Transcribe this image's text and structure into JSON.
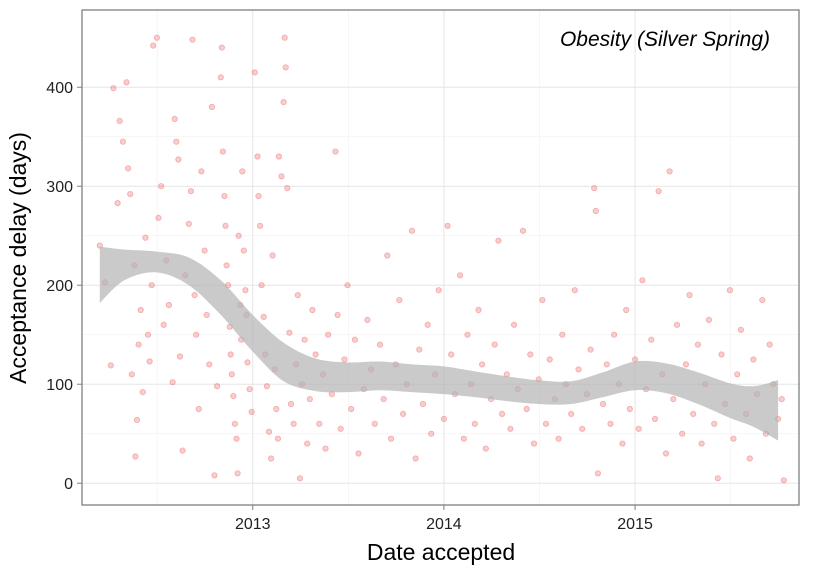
{
  "chart_data": {
    "type": "scatter",
    "title": "Obesity (Silver Spring)",
    "xlabel": "Date accepted",
    "ylabel": "Acceptance delay (days)",
    "x_ticks": [
      "2013",
      "2014",
      "2015"
    ],
    "y_ticks": [
      "0",
      "100",
      "200",
      "300",
      "400"
    ],
    "xlim": [
      "2012-02-10",
      "2015-11-10"
    ],
    "ylim": [
      -22,
      478
    ],
    "grid": true,
    "point_color": "#e8393c",
    "point_alpha": 0.25,
    "ribbon_color": "#b3b3b3",
    "smooth": {
      "x": [
        "2012-03-15",
        "2012-05-01",
        "2012-07-01",
        "2012-09-01",
        "2012-11-01",
        "2013-01-01",
        "2013-03-01",
        "2013-05-01",
        "2013-07-01",
        "2013-09-01",
        "2013-11-01",
        "2014-01-01",
        "2014-03-01",
        "2014-05-01",
        "2014-07-01",
        "2014-09-01",
        "2014-11-01",
        "2015-01-01",
        "2015-03-01",
        "2015-05-01",
        "2015-07-01",
        "2015-08-15",
        "2015-10-01"
      ],
      "lower": [
        182,
        205,
        213,
        200,
        170,
        133,
        103,
        93,
        92,
        94,
        92,
        90,
        87,
        83,
        80,
        80,
        87,
        94,
        91,
        80,
        66,
        57,
        43
      ],
      "upper": [
        239,
        236,
        234,
        228,
        205,
        170,
        142,
        126,
        122,
        123,
        120,
        118,
        113,
        108,
        104,
        103,
        112,
        123,
        121,
        112,
        101,
        98,
        104
      ]
    },
    "points": [
      {
        "date": "2012-03-15",
        "y": 240
      },
      {
        "date": "2012-03-25",
        "y": 203
      },
      {
        "date": "2012-04-05",
        "y": 119
      },
      {
        "date": "2012-04-10",
        "y": 399
      },
      {
        "date": "2012-04-18",
        "y": 283
      },
      {
        "date": "2012-04-22",
        "y": 366
      },
      {
        "date": "2012-04-28",
        "y": 345
      },
      {
        "date": "2012-05-05",
        "y": 405
      },
      {
        "date": "2012-05-08",
        "y": 318
      },
      {
        "date": "2012-05-12",
        "y": 292
      },
      {
        "date": "2012-05-15",
        "y": 110
      },
      {
        "date": "2012-05-20",
        "y": 220
      },
      {
        "date": "2012-05-22",
        "y": 27
      },
      {
        "date": "2012-05-25",
        "y": 64
      },
      {
        "date": "2012-05-28",
        "y": 140
      },
      {
        "date": "2012-06-01",
        "y": 175
      },
      {
        "date": "2012-06-05",
        "y": 92
      },
      {
        "date": "2012-06-10",
        "y": 248
      },
      {
        "date": "2012-06-15",
        "y": 150
      },
      {
        "date": "2012-06-18",
        "y": 123
      },
      {
        "date": "2012-06-22",
        "y": 200
      },
      {
        "date": "2012-06-25",
        "y": 442
      },
      {
        "date": "2012-07-02",
        "y": 450
      },
      {
        "date": "2012-07-05",
        "y": 268
      },
      {
        "date": "2012-07-10",
        "y": 300
      },
      {
        "date": "2012-07-15",
        "y": 160
      },
      {
        "date": "2012-07-20",
        "y": 225
      },
      {
        "date": "2012-07-25",
        "y": 180
      },
      {
        "date": "2012-08-01",
        "y": 102
      },
      {
        "date": "2012-08-05",
        "y": 368
      },
      {
        "date": "2012-08-08",
        "y": 345
      },
      {
        "date": "2012-08-12",
        "y": 327
      },
      {
        "date": "2012-08-15",
        "y": 128
      },
      {
        "date": "2012-08-20",
        "y": 33
      },
      {
        "date": "2012-08-25",
        "y": 210
      },
      {
        "date": "2012-09-01",
        "y": 262
      },
      {
        "date": "2012-09-05",
        "y": 295
      },
      {
        "date": "2012-09-08",
        "y": 448
      },
      {
        "date": "2012-09-12",
        "y": 190
      },
      {
        "date": "2012-09-15",
        "y": 150
      },
      {
        "date": "2012-09-20",
        "y": 75
      },
      {
        "date": "2012-09-25",
        "y": 315
      },
      {
        "date": "2012-10-01",
        "y": 235
      },
      {
        "date": "2012-10-05",
        "y": 170
      },
      {
        "date": "2012-10-10",
        "y": 120
      },
      {
        "date": "2012-10-15",
        "y": 380
      },
      {
        "date": "2012-10-20",
        "y": 8
      },
      {
        "date": "2012-10-25",
        "y": 98
      },
      {
        "date": "2012-11-01",
        "y": 410
      },
      {
        "date": "2012-11-03",
        "y": 440
      },
      {
        "date": "2012-11-05",
        "y": 335
      },
      {
        "date": "2012-11-08",
        "y": 290
      },
      {
        "date": "2012-11-10",
        "y": 260
      },
      {
        "date": "2012-11-12",
        "y": 220
      },
      {
        "date": "2012-11-15",
        "y": 200
      },
      {
        "date": "2012-11-18",
        "y": 158
      },
      {
        "date": "2012-11-20",
        "y": 130
      },
      {
        "date": "2012-11-22",
        "y": 110
      },
      {
        "date": "2012-11-25",
        "y": 88
      },
      {
        "date": "2012-11-28",
        "y": 60
      },
      {
        "date": "2012-12-01",
        "y": 45
      },
      {
        "date": "2012-12-03",
        "y": 10
      },
      {
        "date": "2012-12-05",
        "y": 250
      },
      {
        "date": "2012-12-08",
        "y": 180
      },
      {
        "date": "2012-12-10",
        "y": 145
      },
      {
        "date": "2012-12-12",
        "y": 315
      },
      {
        "date": "2012-12-15",
        "y": 235
      },
      {
        "date": "2012-12-18",
        "y": 195
      },
      {
        "date": "2012-12-20",
        "y": 170
      },
      {
        "date": "2012-12-22",
        "y": 122
      },
      {
        "date": "2012-12-26",
        "y": 95
      },
      {
        "date": "2012-12-30",
        "y": 72
      },
      {
        "date": "2013-01-05",
        "y": 415
      },
      {
        "date": "2013-01-10",
        "y": 330
      },
      {
        "date": "2013-01-12",
        "y": 290
      },
      {
        "date": "2013-01-15",
        "y": 260
      },
      {
        "date": "2013-01-18",
        "y": 200
      },
      {
        "date": "2013-01-22",
        "y": 168
      },
      {
        "date": "2013-01-25",
        "y": 130
      },
      {
        "date": "2013-01-28",
        "y": 98
      },
      {
        "date": "2013-02-01",
        "y": 52
      },
      {
        "date": "2013-02-05",
        "y": 25
      },
      {
        "date": "2013-02-08",
        "y": 230
      },
      {
        "date": "2013-02-12",
        "y": 115
      },
      {
        "date": "2013-02-15",
        "y": 75
      },
      {
        "date": "2013-02-18",
        "y": 45
      },
      {
        "date": "2013-02-20",
        "y": 330
      },
      {
        "date": "2013-02-25",
        "y": 310
      },
      {
        "date": "2013-03-01",
        "y": 385
      },
      {
        "date": "2013-03-03",
        "y": 450
      },
      {
        "date": "2013-03-05",
        "y": 420
      },
      {
        "date": "2013-03-08",
        "y": 298
      },
      {
        "date": "2013-03-12",
        "y": 152
      },
      {
        "date": "2013-03-15",
        "y": 80
      },
      {
        "date": "2013-03-20",
        "y": 60
      },
      {
        "date": "2013-03-25",
        "y": 120
      },
      {
        "date": "2013-03-28",
        "y": 190
      },
      {
        "date": "2013-04-01",
        "y": 5
      },
      {
        "date": "2013-04-05",
        "y": 100
      },
      {
        "date": "2013-04-10",
        "y": 145
      },
      {
        "date": "2013-04-15",
        "y": 40
      },
      {
        "date": "2013-04-20",
        "y": 85
      },
      {
        "date": "2013-04-25",
        "y": 175
      },
      {
        "date": "2013-05-01",
        "y": 130
      },
      {
        "date": "2013-05-08",
        "y": 60
      },
      {
        "date": "2013-05-15",
        "y": 110
      },
      {
        "date": "2013-05-20",
        "y": 35
      },
      {
        "date": "2013-05-25",
        "y": 150
      },
      {
        "date": "2013-06-01",
        "y": 90
      },
      {
        "date": "2013-06-08",
        "y": 335
      },
      {
        "date": "2013-06-12",
        "y": 170
      },
      {
        "date": "2013-06-18",
        "y": 55
      },
      {
        "date": "2013-06-25",
        "y": 125
      },
      {
        "date": "2013-07-01",
        "y": 200
      },
      {
        "date": "2013-07-08",
        "y": 75
      },
      {
        "date": "2013-07-15",
        "y": 145
      },
      {
        "date": "2013-07-22",
        "y": 30
      },
      {
        "date": "2013-08-01",
        "y": 95
      },
      {
        "date": "2013-08-08",
        "y": 165
      },
      {
        "date": "2013-08-15",
        "y": 115
      },
      {
        "date": "2013-08-22",
        "y": 60
      },
      {
        "date": "2013-09-01",
        "y": 140
      },
      {
        "date": "2013-09-08",
        "y": 85
      },
      {
        "date": "2013-09-15",
        "y": 230
      },
      {
        "date": "2013-09-22",
        "y": 45
      },
      {
        "date": "2013-10-01",
        "y": 120
      },
      {
        "date": "2013-10-08",
        "y": 185
      },
      {
        "date": "2013-10-15",
        "y": 70
      },
      {
        "date": "2013-10-22",
        "y": 100
      },
      {
        "date": "2013-11-01",
        "y": 255
      },
      {
        "date": "2013-11-08",
        "y": 25
      },
      {
        "date": "2013-11-15",
        "y": 135
      },
      {
        "date": "2013-11-22",
        "y": 80
      },
      {
        "date": "2013-12-01",
        "y": 160
      },
      {
        "date": "2013-12-08",
        "y": 50
      },
      {
        "date": "2013-12-15",
        "y": 110
      },
      {
        "date": "2013-12-22",
        "y": 195
      },
      {
        "date": "2014-01-01",
        "y": 65
      },
      {
        "date": "2014-01-08",
        "y": 260
      },
      {
        "date": "2014-01-15",
        "y": 130
      },
      {
        "date": "2014-01-22",
        "y": 90
      },
      {
        "date": "2014-02-01",
        "y": 210
      },
      {
        "date": "2014-02-08",
        "y": 45
      },
      {
        "date": "2014-02-15",
        "y": 150
      },
      {
        "date": "2014-02-22",
        "y": 100
      },
      {
        "date": "2014-03-01",
        "y": 60
      },
      {
        "date": "2014-03-08",
        "y": 175
      },
      {
        "date": "2014-03-15",
        "y": 120
      },
      {
        "date": "2014-03-22",
        "y": 35
      },
      {
        "date": "2014-04-01",
        "y": 85
      },
      {
        "date": "2014-04-08",
        "y": 140
      },
      {
        "date": "2014-04-15",
        "y": 245
      },
      {
        "date": "2014-04-22",
        "y": 70
      },
      {
        "date": "2014-05-01",
        "y": 110
      },
      {
        "date": "2014-05-08",
        "y": 55
      },
      {
        "date": "2014-05-15",
        "y": 160
      },
      {
        "date": "2014-05-22",
        "y": 95
      },
      {
        "date": "2014-06-01",
        "y": 255
      },
      {
        "date": "2014-06-08",
        "y": 75
      },
      {
        "date": "2014-06-15",
        "y": 130
      },
      {
        "date": "2014-06-22",
        "y": 40
      },
      {
        "date": "2014-07-01",
        "y": 105
      },
      {
        "date": "2014-07-08",
        "y": 185
      },
      {
        "date": "2014-07-15",
        "y": 60
      },
      {
        "date": "2014-07-22",
        "y": 125
      },
      {
        "date": "2014-08-01",
        "y": 85
      },
      {
        "date": "2014-08-08",
        "y": 45
      },
      {
        "date": "2014-08-15",
        "y": 150
      },
      {
        "date": "2014-08-22",
        "y": 100
      },
      {
        "date": "2014-09-01",
        "y": 70
      },
      {
        "date": "2014-09-08",
        "y": 195
      },
      {
        "date": "2014-09-15",
        "y": 115
      },
      {
        "date": "2014-09-22",
        "y": 55
      },
      {
        "date": "2014-10-01",
        "y": 90
      },
      {
        "date": "2014-10-08",
        "y": 135
      },
      {
        "date": "2014-10-15",
        "y": 298
      },
      {
        "date": "2014-10-18",
        "y": 275
      },
      {
        "date": "2014-10-22",
        "y": 10
      },
      {
        "date": "2014-11-01",
        "y": 80
      },
      {
        "date": "2014-11-08",
        "y": 120
      },
      {
        "date": "2014-11-15",
        "y": 60
      },
      {
        "date": "2014-11-22",
        "y": 150
      },
      {
        "date": "2014-12-01",
        "y": 100
      },
      {
        "date": "2014-12-08",
        "y": 40
      },
      {
        "date": "2014-12-15",
        "y": 175
      },
      {
        "date": "2014-12-22",
        "y": 75
      },
      {
        "date": "2015-01-01",
        "y": 125
      },
      {
        "date": "2015-01-08",
        "y": 55
      },
      {
        "date": "2015-01-15",
        "y": 205
      },
      {
        "date": "2015-01-22",
        "y": 95
      },
      {
        "date": "2015-02-01",
        "y": 145
      },
      {
        "date": "2015-02-08",
        "y": 65
      },
      {
        "date": "2015-02-15",
        "y": 295
      },
      {
        "date": "2015-02-22",
        "y": 110
      },
      {
        "date": "2015-03-01",
        "y": 30
      },
      {
        "date": "2015-03-08",
        "y": 315
      },
      {
        "date": "2015-03-15",
        "y": 85
      },
      {
        "date": "2015-03-22",
        "y": 160
      },
      {
        "date": "2015-04-01",
        "y": 50
      },
      {
        "date": "2015-04-08",
        "y": 120
      },
      {
        "date": "2015-04-15",
        "y": 190
      },
      {
        "date": "2015-04-22",
        "y": 70
      },
      {
        "date": "2015-05-01",
        "y": 140
      },
      {
        "date": "2015-05-08",
        "y": 40
      },
      {
        "date": "2015-05-15",
        "y": 100
      },
      {
        "date": "2015-05-22",
        "y": 165
      },
      {
        "date": "2015-06-01",
        "y": 60
      },
      {
        "date": "2015-06-08",
        "y": 5
      },
      {
        "date": "2015-06-15",
        "y": 130
      },
      {
        "date": "2015-06-22",
        "y": 80
      },
      {
        "date": "2015-07-01",
        "y": 195
      },
      {
        "date": "2015-07-08",
        "y": 45
      },
      {
        "date": "2015-07-15",
        "y": 110
      },
      {
        "date": "2015-07-22",
        "y": 155
      },
      {
        "date": "2015-08-01",
        "y": 70
      },
      {
        "date": "2015-08-08",
        "y": 25
      },
      {
        "date": "2015-08-15",
        "y": 125
      },
      {
        "date": "2015-08-22",
        "y": 90
      },
      {
        "date": "2015-09-01",
        "y": 185
      },
      {
        "date": "2015-09-08",
        "y": 50
      },
      {
        "date": "2015-09-15",
        "y": 140
      },
      {
        "date": "2015-09-22",
        "y": 100
      },
      {
        "date": "2015-10-01",
        "y": 65
      },
      {
        "date": "2015-10-08",
        "y": 85
      },
      {
        "date": "2015-10-12",
        "y": 3
      }
    ]
  }
}
